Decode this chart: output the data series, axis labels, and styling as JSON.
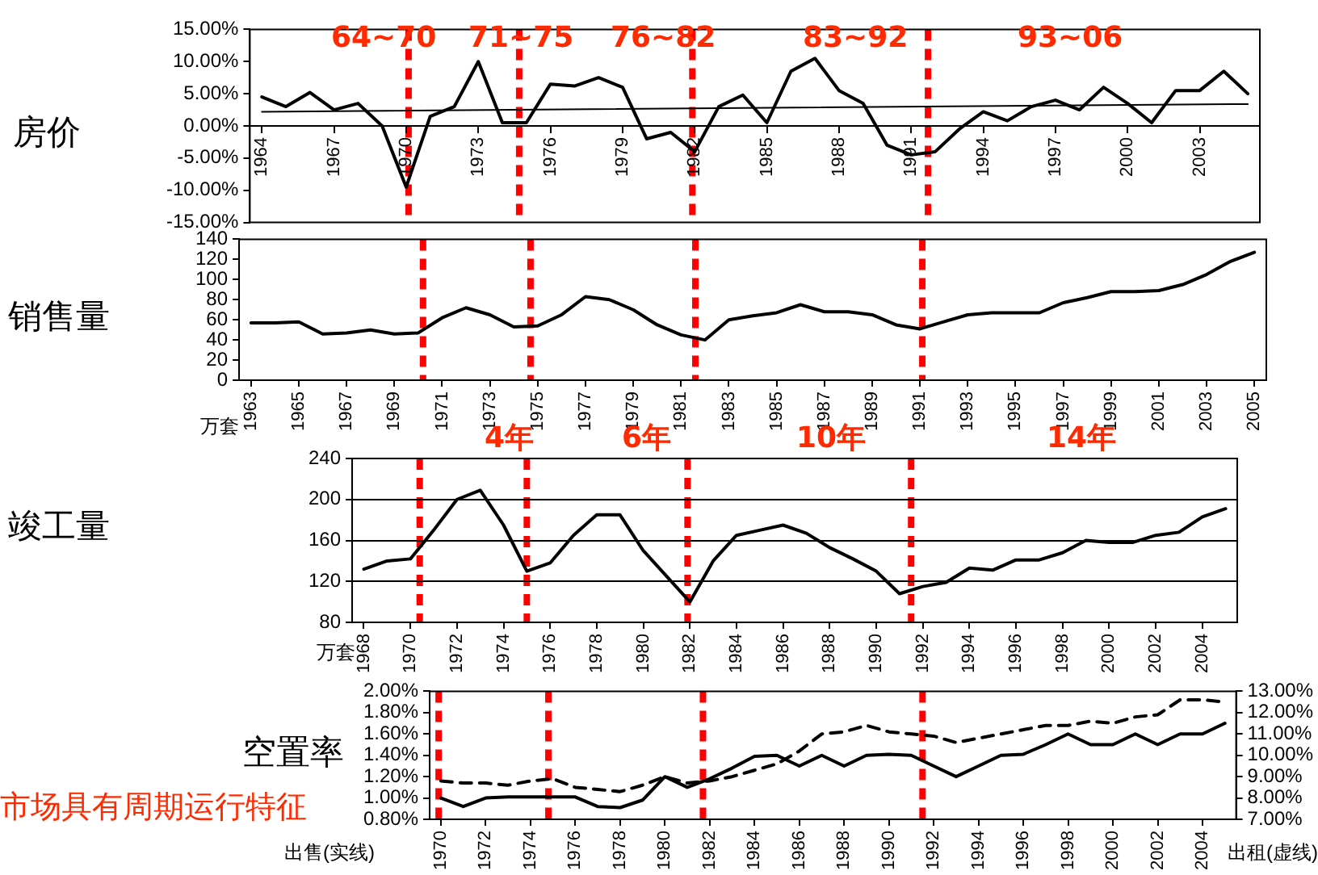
{
  "chart_data": [
    {
      "type": "line",
      "title": "房价",
      "x": [
        1964,
        1965,
        1966,
        1967,
        1968,
        1969,
        1970,
        1971,
        1972,
        1973,
        1974,
        1975,
        1976,
        1977,
        1978,
        1979,
        1980,
        1981,
        1982,
        1983,
        1984,
        1985,
        1986,
        1987,
        1988,
        1989,
        1990,
        1991,
        1992,
        1993,
        1994,
        1995,
        1996,
        1997,
        1998,
        1999,
        2000,
        2001,
        2002,
        2003,
        2004,
        2005
      ],
      "series": [
        {
          "color": "#000000",
          "values": [
            4.5,
            3,
            5.2,
            2.5,
            3.5,
            0,
            -9.5,
            1.5,
            3,
            10,
            0.5,
            0.5,
            6.5,
            6.2,
            7.5,
            6,
            -2,
            -1,
            -4,
            3,
            4.8,
            0.5,
            8.5,
            10.5,
            5.5,
            3.5,
            -3,
            -4.5,
            -4,
            -0.5,
            2.2,
            0.8,
            3,
            4,
            2.5,
            6,
            3.5,
            0.5,
            5.5,
            5.5,
            8.5,
            5
          ]
        },
        {
          "type": "line",
          "color": "#000000",
          "x": [
            1964,
            2005
          ],
          "values": [
            2.2,
            3.4
          ]
        }
      ],
      "xlim": [
        1963.5,
        2005.5
      ],
      "xticks": [
        1964,
        1967,
        1970,
        1973,
        1976,
        1979,
        1982,
        1985,
        1988,
        1991,
        1994,
        1997,
        2000,
        2003
      ],
      "ylim": [
        -15,
        15
      ],
      "yticks": [
        {
          "value": -15,
          "label": "-15.00%"
        },
        {
          "value": -10,
          "label": "-10.00%"
        },
        {
          "value": -5,
          "label": "-5.00%"
        },
        {
          "value": 0,
          "label": "0.00%"
        },
        {
          "value": 5,
          "label": "5.00%"
        },
        {
          "value": 10,
          "label": "10.00%"
        },
        {
          "value": 15,
          "label": "15.00%"
        }
      ],
      "ref_lines": [
        {
          "axis": "x",
          "value": 1970.1,
          "color": "#ff0000",
          "line_style": "dashed"
        },
        {
          "axis": "x",
          "value": 1974.7,
          "color": "#ff0000",
          "line_style": "dashed"
        },
        {
          "axis": "x",
          "value": 1981.9,
          "color": "#ff0000",
          "line_style": "dashed"
        },
        {
          "axis": "x",
          "value": 1991.7,
          "color": "#ff0000",
          "line_style": "dashed"
        }
      ],
      "annotations": [
        "64~70",
        "71~75",
        "76~82",
        "83~92",
        "93~06"
      ],
      "grid": false,
      "legend": false,
      "marker": "none"
    },
    {
      "type": "line",
      "title": "销售量",
      "ylabel": "万套",
      "x": [
        1963,
        1964,
        1965,
        1966,
        1967,
        1968,
        1969,
        1970,
        1971,
        1972,
        1973,
        1974,
        1975,
        1976,
        1977,
        1978,
        1979,
        1980,
        1981,
        1982,
        1983,
        1984,
        1985,
        1986,
        1987,
        1988,
        1989,
        1990,
        1991,
        1992,
        1993,
        1994,
        1995,
        1996,
        1997,
        1998,
        1999,
        2000,
        2001,
        2002,
        2003,
        2004,
        2005
      ],
      "series": [
        {
          "color": "#000000",
          "values": [
            57,
            57,
            58,
            46,
            47,
            50,
            46,
            47,
            62,
            72,
            65,
            53,
            54,
            65,
            83,
            80,
            70,
            55,
            45,
            40,
            60,
            64,
            67,
            75,
            68,
            68,
            65,
            55,
            51,
            58,
            65,
            67,
            67,
            67,
            77,
            82,
            88,
            88,
            89,
            95,
            105,
            118,
            127
          ]
        }
      ],
      "xlim": [
        1962.5,
        2005.5
      ],
      "xticks": [
        1963,
        1965,
        1967,
        1969,
        1971,
        1973,
        1975,
        1977,
        1979,
        1981,
        1983,
        1985,
        1987,
        1989,
        1991,
        1993,
        1995,
        1997,
        1999,
        2001,
        2003,
        2005
      ],
      "ylim": [
        0,
        140
      ],
      "yticks": [
        0,
        20,
        40,
        60,
        80,
        100,
        120,
        140
      ],
      "ref_lines": [
        {
          "axis": "x",
          "value": 1970.2,
          "color": "#ff0000",
          "line_style": "dashed"
        },
        {
          "axis": "x",
          "value": 1974.7,
          "color": "#ff0000",
          "line_style": "dashed"
        },
        {
          "axis": "x",
          "value": 1981.6,
          "color": "#ff0000",
          "line_style": "dashed"
        },
        {
          "axis": "x",
          "value": 1991.1,
          "color": "#ff0000",
          "line_style": "dashed"
        }
      ],
      "grid": false,
      "legend": false,
      "marker": "none"
    },
    {
      "type": "line",
      "title": "竣工量",
      "ylabel": "万套",
      "x": [
        1968,
        1969,
        1970,
        1971,
        1972,
        1973,
        1974,
        1975,
        1976,
        1977,
        1978,
        1979,
        1980,
        1981,
        1982,
        1983,
        1984,
        1985,
        1986,
        1987,
        1988,
        1989,
        1990,
        1991,
        1992,
        1993,
        1994,
        1995,
        1996,
        1997,
        1998,
        1999,
        2000,
        2001,
        2002,
        2003,
        2004,
        2005
      ],
      "series": [
        {
          "color": "#000000",
          "values": [
            132,
            140,
            142,
            170,
            200,
            209,
            175,
            130,
            138,
            165,
            185,
            185,
            150,
            125,
            100,
            140,
            165,
            170,
            175,
            167,
            153,
            142,
            130,
            108,
            115,
            119,
            133,
            131,
            141,
            141,
            148,
            160,
            158,
            158,
            165,
            168,
            183,
            191
          ]
        }
      ],
      "xlim": [
        1967.5,
        2005.5
      ],
      "xticks": [
        1968,
        1970,
        1972,
        1974,
        1976,
        1978,
        1980,
        1982,
        1984,
        1986,
        1988,
        1990,
        1992,
        1994,
        1996,
        1998,
        2000,
        2002,
        2004
      ],
      "ylim": [
        80,
        240
      ],
      "yticks": [
        80,
        120,
        160,
        200,
        240
      ],
      "ref_lines": [
        {
          "axis": "x",
          "value": 1970.4,
          "color": "#ff0000",
          "line_style": "dashed"
        },
        {
          "axis": "x",
          "value": 1975,
          "color": "#ff0000",
          "line_style": "dashed"
        },
        {
          "axis": "x",
          "value": 1981.9,
          "color": "#ff0000",
          "line_style": "dashed"
        },
        {
          "axis": "x",
          "value": 1991.5,
          "color": "#ff0000",
          "line_style": "dashed"
        }
      ],
      "annotations": [
        "4年",
        "6年",
        "10年",
        "14年"
      ],
      "grid": "y",
      "legend": false,
      "marker": "none"
    },
    {
      "type": "line",
      "title": "空置率",
      "ylabel": "出售(实线)",
      "y2label": "出租(虚线)",
      "x": [
        1970,
        1971,
        1972,
        1973,
        1974,
        1975,
        1976,
        1977,
        1978,
        1979,
        1980,
        1981,
        1982,
        1983,
        1984,
        1985,
        1986,
        1987,
        1988,
        1989,
        1990,
        1991,
        1992,
        1993,
        1994,
        1995,
        1996,
        1997,
        1998,
        1999,
        2000,
        2001,
        2002,
        2003,
        2004,
        2005
      ],
      "series": [
        {
          "color": "#000000",
          "values": [
            1.0,
            0.92,
            1.0,
            1.01,
            1.01,
            1.01,
            1.01,
            0.92,
            0.91,
            0.98,
            1.2,
            1.1,
            1.18,
            1.28,
            1.39,
            1.4,
            1.3,
            1.4,
            1.3,
            1.4,
            1.41,
            1.4,
            1.3,
            1.2,
            1.3,
            1.4,
            1.41,
            1.5,
            1.6,
            1.5,
            1.5,
            1.6,
            1.5,
            1.6,
            1.6,
            1.7
          ]
        },
        {
          "color": "#000000",
          "axis": "y2",
          "line_style": "dashed",
          "values": [
            8.8,
            8.7,
            8.7,
            8.6,
            8.8,
            8.9,
            8.5,
            8.4,
            8.3,
            8.6,
            9.0,
            8.7,
            8.8,
            9.0,
            9.3,
            9.6,
            10.2,
            11.0,
            11.1,
            11.4,
            11.1,
            11.0,
            10.9,
            10.6,
            10.8,
            11.0,
            11.2,
            11.4,
            11.4,
            11.6,
            11.5,
            11.8,
            11.9,
            12.6,
            12.6,
            12.5
          ]
        }
      ],
      "xlim": [
        1969.5,
        2005.5
      ],
      "xticks": [
        1970,
        1972,
        1974,
        1976,
        1978,
        1980,
        1982,
        1984,
        1986,
        1988,
        1990,
        1992,
        1994,
        1996,
        1998,
        2000,
        2002,
        2004
      ],
      "ylim": [
        0.8,
        2.0
      ],
      "yticks": [
        {
          "value": 0.8,
          "label": "0.80%"
        },
        {
          "value": 1.0,
          "label": "1.00%"
        },
        {
          "value": 1.2,
          "label": "1.20%"
        },
        {
          "value": 1.4,
          "label": "1.40%"
        },
        {
          "value": 1.6,
          "label": "1.60%"
        },
        {
          "value": 1.8,
          "label": "1.80%"
        },
        {
          "value": 2.0,
          "label": "2.00%"
        }
      ],
      "y2lim": [
        7,
        13
      ],
      "y2ticks": [
        {
          "value": 7,
          "label": "7.00%"
        },
        {
          "value": 8,
          "label": "8.00%"
        },
        {
          "value": 9,
          "label": "9.00%"
        },
        {
          "value": 10,
          "label": "10.00%"
        },
        {
          "value": 11,
          "label": "11.00%"
        },
        {
          "value": 12,
          "label": "12.00%"
        },
        {
          "value": 13,
          "label": "13.00%"
        }
      ],
      "ref_lines": [
        {
          "axis": "x",
          "value": 1969.9,
          "color": "#ff0000",
          "line_style": "dashed"
        },
        {
          "axis": "x",
          "value": 1974.8,
          "color": "#ff0000",
          "line_style": "dashed"
        },
        {
          "axis": "x",
          "value": 1981.7,
          "color": "#ff0000",
          "line_style": "dashed"
        },
        {
          "axis": "x",
          "value": 1991.5,
          "color": "#ff0000",
          "line_style": "dashed"
        }
      ],
      "annotations": [
        "市场具有周期运行特征"
      ],
      "grid": false,
      "legend": false,
      "marker": "none"
    }
  ]
}
